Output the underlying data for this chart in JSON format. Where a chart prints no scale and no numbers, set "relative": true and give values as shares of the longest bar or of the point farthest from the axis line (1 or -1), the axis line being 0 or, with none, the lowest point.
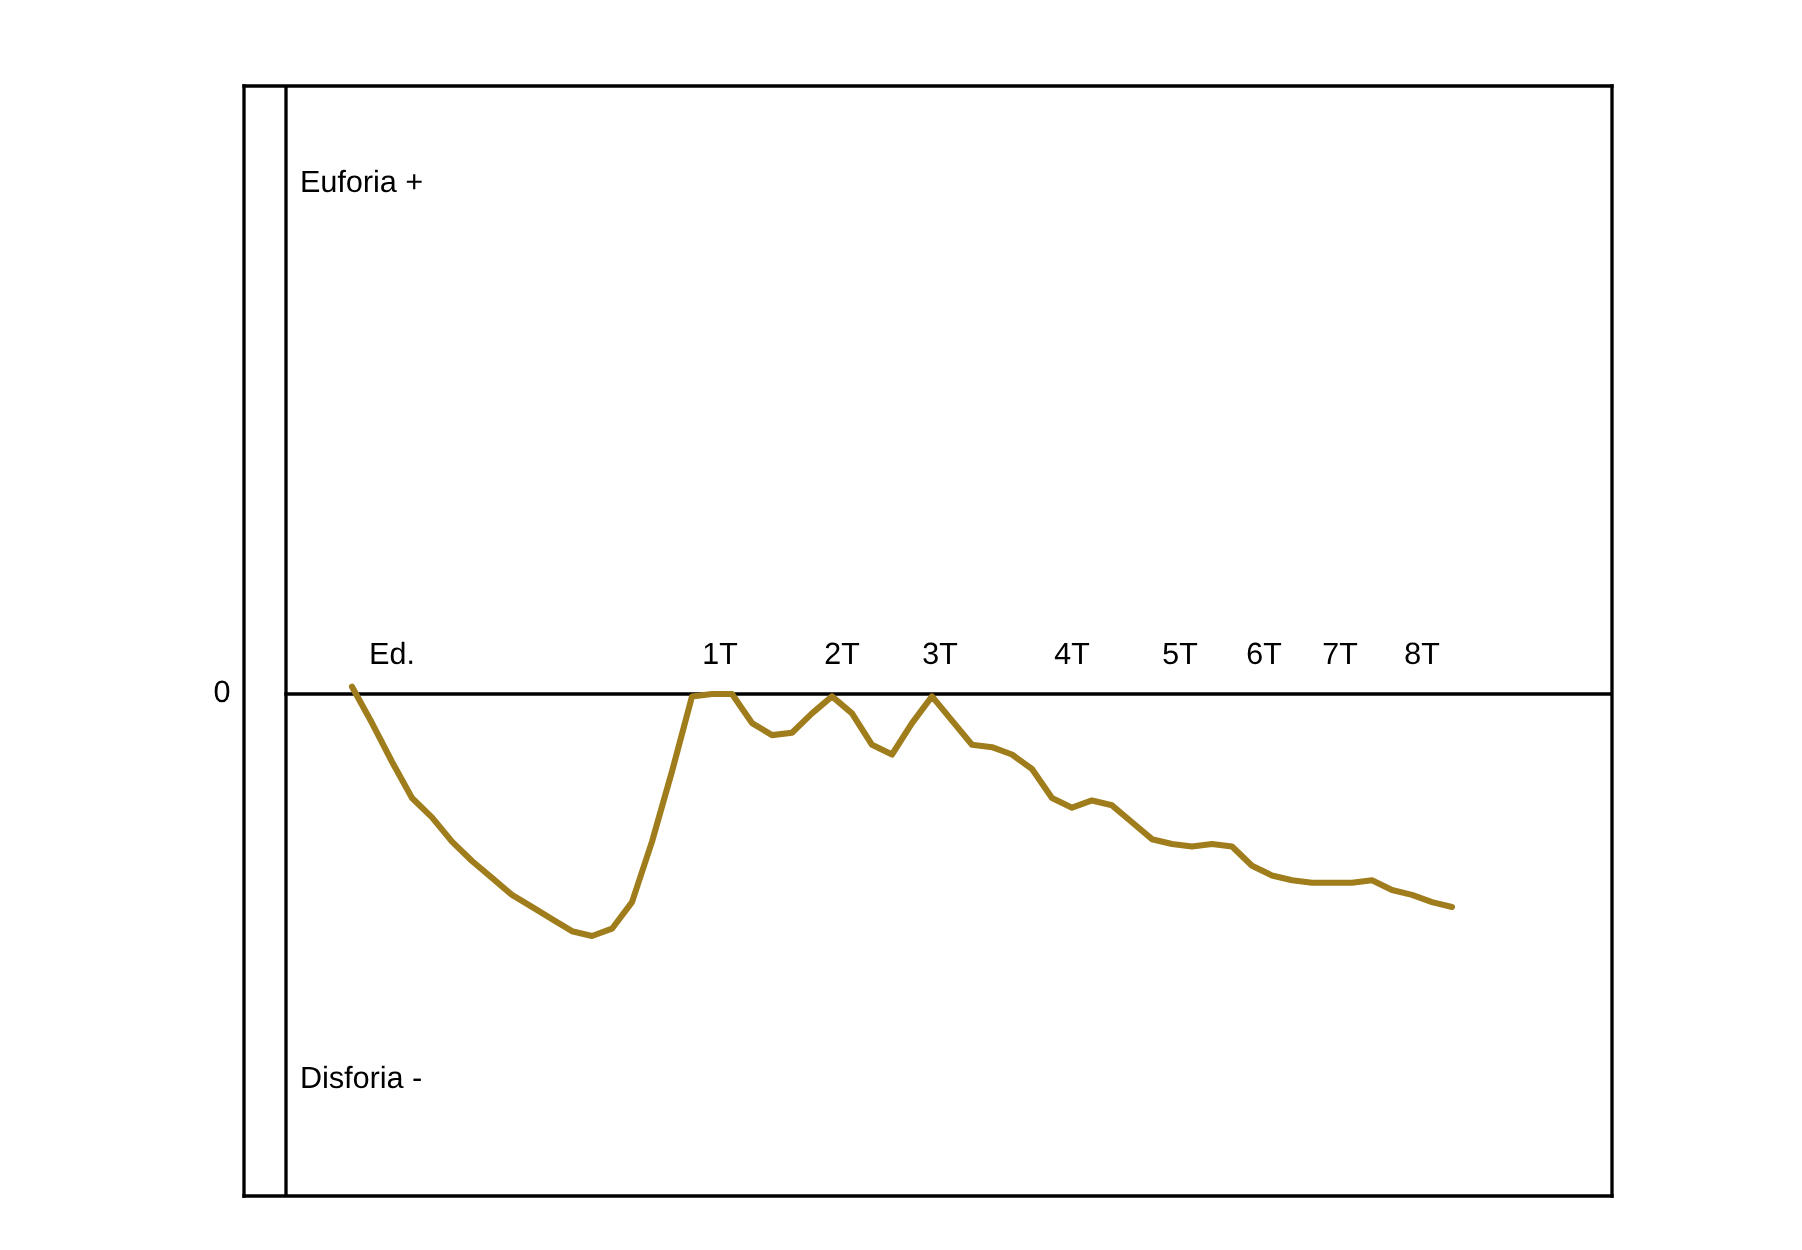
{
  "chart_data": {
    "type": "line",
    "relative": true,
    "categories": [
      null,
      null,
      null,
      null,
      null,
      null,
      null,
      null,
      null,
      null,
      null,
      null,
      null,
      null,
      null,
      null,
      null,
      null,
      null,
      null,
      null,
      null,
      null,
      null,
      null,
      null,
      null,
      null,
      null,
      null,
      null,
      null,
      null,
      null,
      null,
      null,
      null,
      null,
      null,
      null,
      null,
      null,
      null,
      null,
      null,
      null,
      null,
      null,
      null,
      null,
      null,
      null,
      null,
      null,
      null,
      null
    ],
    "series": [
      {
        "color": "#a07d1c",
        "values": [
          0.03,
          -0.12,
          -0.28,
          -0.43,
          -0.51,
          -0.61,
          -0.69,
          -0.76,
          -0.83,
          -0.88,
          -0.93,
          -0.98,
          -1,
          -0.97,
          -0.86,
          -0.61,
          -0.32,
          -0.01,
          0,
          0,
          -0.12,
          -0.17,
          -0.16,
          -0.08,
          -0.01,
          -0.08,
          -0.21,
          -0.25,
          -0.12,
          -0.01,
          -0.11,
          -0.21,
          -0.22,
          -0.25,
          -0.31,
          -0.43,
          -0.47,
          -0.44,
          -0.46,
          -0.53,
          -0.6,
          -0.62,
          -0.63,
          -0.62,
          -0.63,
          -0.71,
          -0.75,
          -0.77,
          -0.78,
          -0.78,
          -0.78,
          -0.77,
          -0.81,
          -0.83,
          -0.86,
          -0.88
        ]
      }
    ],
    "annotations": [
      "Euforia +",
      "Disforia -",
      "0",
      "Ed.",
      "1T",
      "2T",
      "3T",
      "4T",
      "5T",
      "6T",
      "7T",
      "8T"
    ]
  }
}
